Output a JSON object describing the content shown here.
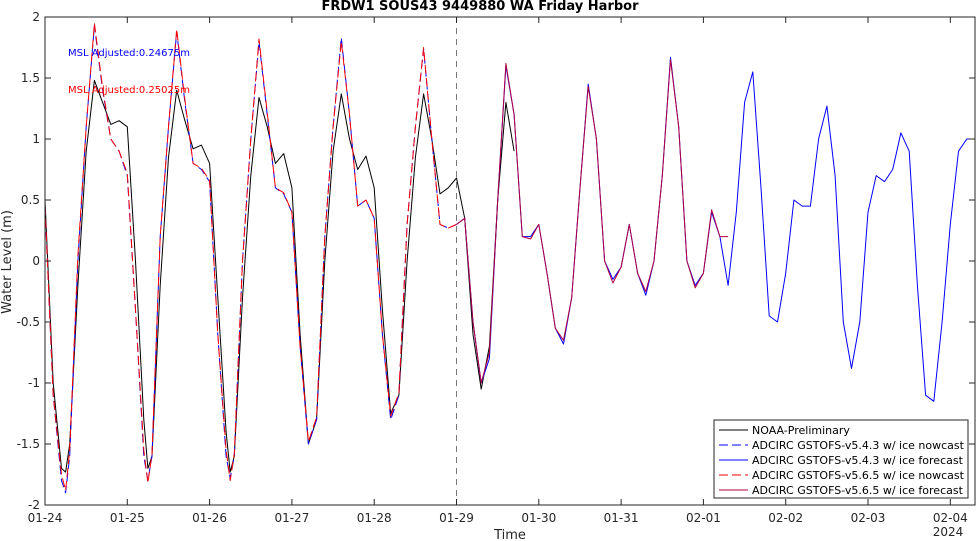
{
  "chart_data": {
    "type": "line",
    "title": "FRDW1 SOUS43 9449880 WA Friday Harbor",
    "xlabel": "Time",
    "ylabel": "Water Level (m)",
    "xlim": [
      0,
      11.3
    ],
    "ylim": [
      -2,
      2
    ],
    "x_ticks": [
      0,
      1,
      2,
      3,
      4,
      5,
      6,
      7,
      8,
      9,
      10,
      11
    ],
    "x_tick_labels": [
      "01-24",
      "01-25",
      "01-26",
      "01-27",
      "01-28",
      "01-29",
      "01-30",
      "01-31",
      "02-01",
      "02-02",
      "02-03",
      "02-04"
    ],
    "x_secondary_label": "2024",
    "y_ticks": [
      -2,
      -1.5,
      -1,
      -0.5,
      0,
      0.5,
      1,
      1.5,
      2
    ],
    "y_tick_labels": [
      "-2",
      "-1.5",
      "-1",
      "-0.5",
      "0",
      "0.5",
      "1",
      "1.5",
      "2"
    ],
    "forecast_start_x": 5,
    "grid": false,
    "legend_position": "bottom-right",
    "annotations": [
      {
        "text": "MSL Adjusted:0.24675m",
        "color": "#0000ff"
      },
      {
        "text": "MSL Adjusted:0.25025m",
        "color": "#ff0000"
      }
    ],
    "series": [
      {
        "name": "NOAA-Preliminary",
        "color": "#000000",
        "dash": "solid",
        "x": [
          0,
          0.1,
          0.2,
          0.25,
          0.3,
          0.4,
          0.5,
          0.6,
          0.7,
          0.8,
          0.9,
          1.0,
          1.1,
          1.2,
          1.25,
          1.3,
          1.4,
          1.5,
          1.6,
          1.7,
          1.8,
          1.9,
          2.0,
          2.1,
          2.2,
          2.25,
          2.3,
          2.4,
          2.5,
          2.6,
          2.7,
          2.8,
          2.9,
          3.0,
          3.1,
          3.2,
          3.3,
          3.4,
          3.5,
          3.6,
          3.7,
          3.8,
          3.9,
          4.0,
          4.1,
          4.2,
          4.3,
          4.4,
          4.5,
          4.6,
          4.7,
          4.8,
          4.9,
          5.0,
          5.1,
          5.2,
          5.3,
          5.4,
          5.5,
          5.6,
          5.7
        ],
        "y": [
          0.5,
          -1.0,
          -1.7,
          -1.73,
          -1.5,
          -0.2,
          0.9,
          1.48,
          1.3,
          1.12,
          1.15,
          1.1,
          0.0,
          -1.3,
          -1.7,
          -1.6,
          -0.2,
          0.85,
          1.4,
          1.15,
          0.92,
          0.95,
          0.8,
          -0.3,
          -1.4,
          -1.73,
          -1.6,
          -0.3,
          0.7,
          1.34,
          1.1,
          0.8,
          0.88,
          0.6,
          -0.6,
          -1.5,
          -1.3,
          0.0,
          0.9,
          1.37,
          1.0,
          0.75,
          0.86,
          0.6,
          -0.4,
          -1.25,
          -1.1,
          0.0,
          0.85,
          1.37,
          1.0,
          0.55,
          0.6,
          0.68,
          0.35,
          -0.6,
          -1.05,
          -0.7,
          0.5,
          1.3,
          0.9
        ]
      },
      {
        "name": "ADCIRC GSTOFS-v5.4.3 w/ ice nowcast",
        "color": "#0000ff",
        "dash": "dashed",
        "x": [
          0,
          0.1,
          0.2,
          0.25,
          0.3,
          0.4,
          0.5,
          0.6,
          0.7,
          0.8,
          0.9,
          1.0,
          1.1,
          1.2,
          1.25,
          1.3,
          1.4,
          1.5,
          1.6,
          1.7,
          1.8,
          1.9,
          2.0,
          2.1,
          2.2,
          2.25,
          2.3,
          2.4,
          2.5,
          2.6,
          2.7,
          2.8,
          2.9,
          3.0,
          3.1,
          3.2,
          3.3,
          3.4,
          3.5,
          3.6,
          3.7,
          3.8,
          3.9,
          4.0,
          4.1,
          4.2,
          4.3,
          4.4,
          4.5,
          4.6,
          4.7,
          4.8,
          4.9,
          5.0
        ],
        "y": [
          0.45,
          -1.1,
          -1.8,
          -1.9,
          -1.6,
          0.0,
          1.1,
          1.93,
          1.4,
          1.0,
          0.9,
          0.7,
          -0.4,
          -1.6,
          -1.8,
          -1.6,
          0.2,
          1.1,
          1.88,
          1.3,
          0.8,
          0.75,
          0.65,
          -0.6,
          -1.6,
          -1.78,
          -1.6,
          0.0,
          1.0,
          1.8,
          1.2,
          0.6,
          0.55,
          0.4,
          -0.7,
          -1.5,
          -1.3,
          0.2,
          1.1,
          1.83,
          1.2,
          0.45,
          0.5,
          0.35,
          -0.6,
          -1.3,
          -1.1,
          0.3,
          1.1,
          1.74,
          1.0,
          0.3,
          0.27,
          0.3
        ]
      },
      {
        "name": "ADCIRC GSTOFS-v5.4.3 w/ ice forecast",
        "color": "#0000ff",
        "dash": "solid",
        "x": [
          5.0,
          5.1,
          5.2,
          5.3,
          5.4,
          5.5,
          5.6,
          5.7,
          5.8,
          5.9,
          6.0,
          6.1,
          6.2,
          6.3,
          6.4,
          6.5,
          6.6,
          6.7,
          6.8,
          6.9,
          7.0,
          7.1,
          7.2,
          7.3,
          7.4,
          7.5,
          7.6,
          7.7,
          7.8,
          7.9,
          8.0,
          8.1,
          8.2,
          8.3,
          8.4,
          8.5,
          8.6,
          8.7,
          8.8,
          8.9,
          9.0,
          9.1,
          9.2,
          9.3,
          9.4,
          9.5,
          9.6,
          9.7,
          9.8,
          9.9,
          10.0,
          10.1,
          10.2,
          10.3,
          10.4,
          10.5,
          10.6,
          10.7,
          10.8,
          10.9,
          11.0,
          11.1,
          11.2,
          11.3
        ],
        "y": [
          0.3,
          0.35,
          -0.5,
          -1.0,
          -0.8,
          0.5,
          1.6,
          1.2,
          0.2,
          0.2,
          0.3,
          -0.1,
          -0.55,
          -0.68,
          -0.3,
          0.6,
          1.45,
          1.0,
          0.0,
          -0.15,
          -0.05,
          0.3,
          -0.1,
          -0.28,
          0.0,
          0.7,
          1.67,
          1.1,
          0.0,
          -0.2,
          -0.1,
          0.4,
          0.2,
          -0.2,
          0.4,
          1.3,
          1.55,
          0.6,
          -0.45,
          -0.5,
          -0.1,
          0.5,
          0.45,
          0.45,
          1.0,
          1.27,
          0.7,
          -0.5,
          -0.88,
          -0.5,
          0.4,
          0.7,
          0.65,
          0.75,
          1.05,
          0.9,
          -0.2,
          -1.1,
          -1.15,
          -0.5,
          0.3,
          0.9,
          1.0,
          1.0
        ]
      },
      {
        "name": "ADCIRC GSTOFS-v5.6.5 w/ ice nowcast",
        "color": "#ff0000",
        "dash": "dashed",
        "x": [
          0,
          0.1,
          0.2,
          0.25,
          0.3,
          0.4,
          0.5,
          0.6,
          0.7,
          0.8,
          0.9,
          1.0,
          1.1,
          1.2,
          1.25,
          1.3,
          1.4,
          1.5,
          1.6,
          1.7,
          1.8,
          1.9,
          2.0,
          2.1,
          2.2,
          2.25,
          2.3,
          2.4,
          2.5,
          2.6,
          2.7,
          2.8,
          2.9,
          3.0,
          3.1,
          3.2,
          3.3,
          3.4,
          3.5,
          3.6,
          3.7,
          3.8,
          3.9,
          4.0,
          4.1,
          4.2,
          4.3,
          4.4,
          4.5,
          4.6,
          4.7,
          4.8,
          4.9,
          5.0
        ],
        "y": [
          0.45,
          -1.1,
          -1.75,
          -1.88,
          -1.55,
          0.05,
          1.1,
          1.95,
          1.42,
          1.0,
          0.9,
          0.72,
          -0.4,
          -1.55,
          -1.82,
          -1.58,
          0.2,
          1.1,
          1.9,
          1.32,
          0.8,
          0.76,
          0.66,
          -0.6,
          -1.55,
          -1.8,
          -1.58,
          0.0,
          1.0,
          1.82,
          1.22,
          0.6,
          0.56,
          0.4,
          -0.7,
          -1.48,
          -1.28,
          0.2,
          1.1,
          1.8,
          1.2,
          0.45,
          0.5,
          0.35,
          -0.6,
          -1.27,
          -1.08,
          0.3,
          1.1,
          1.75,
          1.0,
          0.3,
          0.27,
          0.3
        ]
      },
      {
        "name": "ADCIRC GSTOFS-v5.6.5 w/ ice forecast",
        "color": "#b2003f",
        "dash": "solid",
        "x": [
          5.0,
          5.1,
          5.2,
          5.3,
          5.4,
          5.5,
          5.6,
          5.7,
          5.8,
          5.9,
          6.0,
          6.1,
          6.2,
          6.3,
          6.4,
          6.5,
          6.6,
          6.7,
          6.8,
          6.9,
          7.0,
          7.1,
          7.2,
          7.3,
          7.4,
          7.5,
          7.6,
          7.7,
          7.8,
          7.9,
          8.0,
          8.1,
          8.2,
          8.3
        ],
        "y": [
          0.3,
          0.35,
          -0.5,
          -1.0,
          -0.75,
          0.5,
          1.62,
          1.2,
          0.2,
          0.18,
          0.3,
          -0.1,
          -0.55,
          -0.65,
          -0.3,
          0.6,
          1.43,
          1.0,
          0.0,
          -0.18,
          -0.05,
          0.3,
          -0.1,
          -0.25,
          0.0,
          0.7,
          1.65,
          1.1,
          0.0,
          -0.22,
          -0.1,
          0.42,
          0.2,
          0.2
        ]
      }
    ]
  }
}
